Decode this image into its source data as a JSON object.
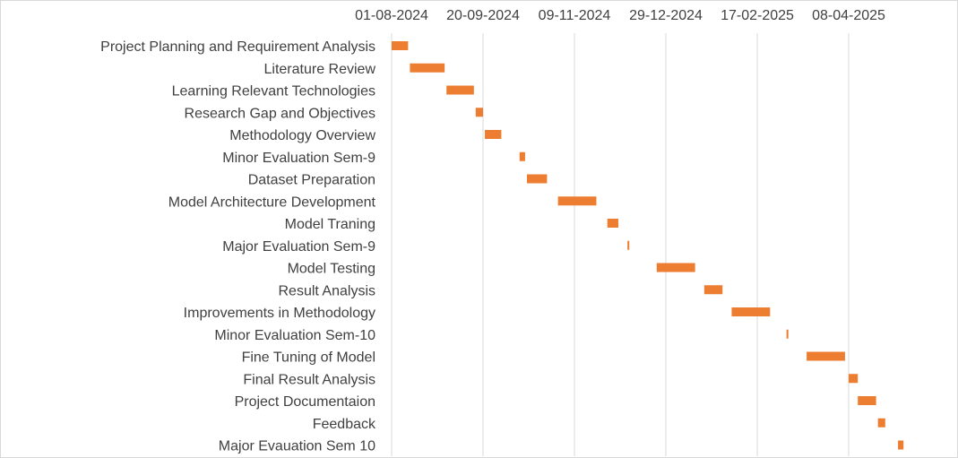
{
  "chart_data": {
    "type": "bar",
    "orientation": "horizontal",
    "style": "gantt",
    "x_ticks": [
      "01-08-2024",
      "20-09-2024",
      "09-11-2024",
      "29-12-2024",
      "17-02-2025",
      "08-04-2025"
    ],
    "x_axis_position": "top",
    "grid": true,
    "bar_color": "#ED7D31",
    "tasks": [
      {
        "label": "Project Planning and Requirement Analysis",
        "start": "2024-08-01",
        "end": "2024-08-10"
      },
      {
        "label": "Literature Review",
        "start": "2024-08-11",
        "end": "2024-08-30"
      },
      {
        "label": "Learning Relevant Technologies",
        "start": "2024-08-31",
        "end": "2024-09-15"
      },
      {
        "label": "Research Gap and Objectives",
        "start": "2024-09-16",
        "end": "2024-09-20"
      },
      {
        "label": "Methodology Overview",
        "start": "2024-09-21",
        "end": "2024-09-30"
      },
      {
        "label": "Minor Evaluation Sem-9",
        "start": "2024-10-10",
        "end": "2024-10-13"
      },
      {
        "label": "Dataset Preparation",
        "start": "2024-10-14",
        "end": "2024-10-25"
      },
      {
        "label": "Model Architecture Development",
        "start": "2024-10-31",
        "end": "2024-11-21"
      },
      {
        "label": "Model Traning",
        "start": "2024-11-27",
        "end": "2024-12-03"
      },
      {
        "label": "Major Evaluation Sem-9",
        "start": "2024-12-08",
        "end": "2024-12-09"
      },
      {
        "label": "Model Testing",
        "start": "2024-12-24",
        "end": "2025-01-14"
      },
      {
        "label": "Result Analysis",
        "start": "2025-01-19",
        "end": "2025-01-29"
      },
      {
        "label": "Improvements in Methodology",
        "start": "2025-02-03",
        "end": "2025-02-24"
      },
      {
        "label": "Minor Evaluation Sem-10",
        "start": "2025-03-05",
        "end": "2025-03-06"
      },
      {
        "label": "Fine Tuning of Model",
        "start": "2025-03-16",
        "end": "2025-04-06"
      },
      {
        "label": "Final Result Analysis",
        "start": "2025-04-08",
        "end": "2025-04-13"
      },
      {
        "label": "Project Documentaion",
        "start": "2025-04-13",
        "end": "2025-04-23"
      },
      {
        "label": "Feedback",
        "start": "2025-04-24",
        "end": "2025-04-28"
      },
      {
        "label": "Major Evauation Sem 10",
        "start": "2025-05-05",
        "end": "2025-05-08"
      }
    ]
  }
}
